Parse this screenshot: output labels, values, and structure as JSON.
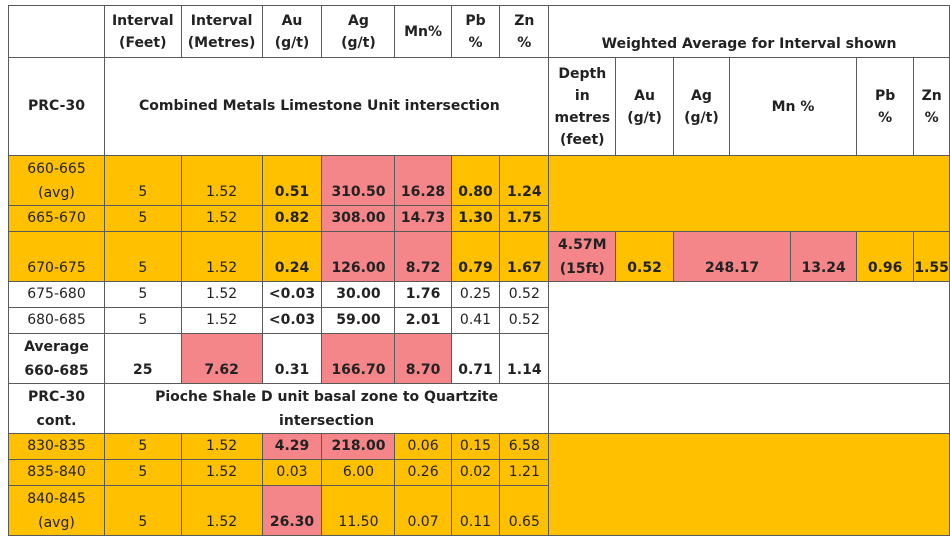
{
  "colors": {
    "orange": "#FFC000",
    "pink": "#F4868A",
    "border": "#5a5a5a",
    "white": "#ffffff"
  },
  "header": {
    "col_interval_feet": [
      "Interval",
      "(Feet)"
    ],
    "col_interval_metres": [
      "Interval",
      "(Metres)"
    ],
    "col_au": [
      "Au",
      "(g/t)"
    ],
    "col_ag": [
      "Ag",
      "(g/t)"
    ],
    "col_mn": "Mn%",
    "col_pb": [
      "Pb",
      "%"
    ],
    "col_zn": [
      "Zn",
      "%"
    ],
    "weighted_title": "Weighted Average for Interval shown"
  },
  "section1": {
    "hole": "PRC-30",
    "title": "Combined Metals Limestone Unit intersection",
    "wa_headers": {
      "depth": [
        "Depth",
        "in",
        "metres",
        "(feet)"
      ],
      "au": [
        "Au",
        "(g/t)"
      ],
      "ag": [
        "Ag",
        "(g/t)"
      ],
      "mn": "Mn %",
      "pb": [
        "Pb",
        "%"
      ],
      "zn": [
        "Zn",
        "%"
      ]
    },
    "rows": [
      {
        "interval": [
          "660-665",
          "(avg)"
        ],
        "feet": "5",
        "metres": "1.52",
        "au": "0.51",
        "ag": "310.50",
        "mn": "16.28",
        "pb": "0.80",
        "zn": "1.24"
      },
      {
        "interval": [
          "665-670"
        ],
        "feet": "5",
        "metres": "1.52",
        "au": "0.82",
        "ag": "308.00",
        "mn": "14.73",
        "pb": "1.30",
        "zn": "1.75"
      },
      {
        "interval": [
          "670-675"
        ],
        "feet": "5",
        "metres": "1.52",
        "au": "0.24",
        "ag": "126.00",
        "mn": "8.72",
        "pb": "0.79",
        "zn": "1.67"
      },
      {
        "interval": [
          "675-680"
        ],
        "feet": "5",
        "metres": "1.52",
        "au": "<0.03",
        "ag": "30.00",
        "mn": "1.76",
        "pb": "0.25",
        "zn": "0.52"
      },
      {
        "interval": [
          "680-685"
        ],
        "feet": "5",
        "metres": "1.52",
        "au": "<0.03",
        "ag": "59.00",
        "mn": "2.01",
        "pb": "0.41",
        "zn": "0.52"
      }
    ],
    "weighted": {
      "depth": [
        "4.57M",
        "(15ft)"
      ],
      "au": "0.52",
      "ag": "248.17",
      "mn": "13.24",
      "pb": "0.96",
      "zn": "1.55"
    },
    "average": {
      "label": [
        "Average",
        "660-685"
      ],
      "feet": "25",
      "metres": "7.62",
      "au": "0.31",
      "ag": "166.70",
      "mn": "8.70",
      "pb": "0.71",
      "zn": "1.14"
    }
  },
  "section2": {
    "hole": [
      "PRC-30",
      "cont."
    ],
    "title": [
      "Pioche Shale D unit basal zone to Quartzite",
      "intersection"
    ],
    "rows": [
      {
        "interval": [
          "830-835"
        ],
        "feet": "5",
        "metres": "1.52",
        "au": "4.29",
        "ag": "218.00",
        "mn": "0.06",
        "pb": "0.15",
        "zn": "6.58"
      },
      {
        "interval": [
          "835-840"
        ],
        "feet": "5",
        "metres": "1.52",
        "au": "0.03",
        "ag": "6.00",
        "mn": "0.26",
        "pb": "0.02",
        "zn": "1.21"
      },
      {
        "interval": [
          "840-845",
          "(avg)"
        ],
        "feet": "5",
        "metres": "1.52",
        "au": "26.30",
        "ag": "11.50",
        "mn": "0.07",
        "pb": "0.11",
        "zn": "0.65"
      }
    ]
  }
}
